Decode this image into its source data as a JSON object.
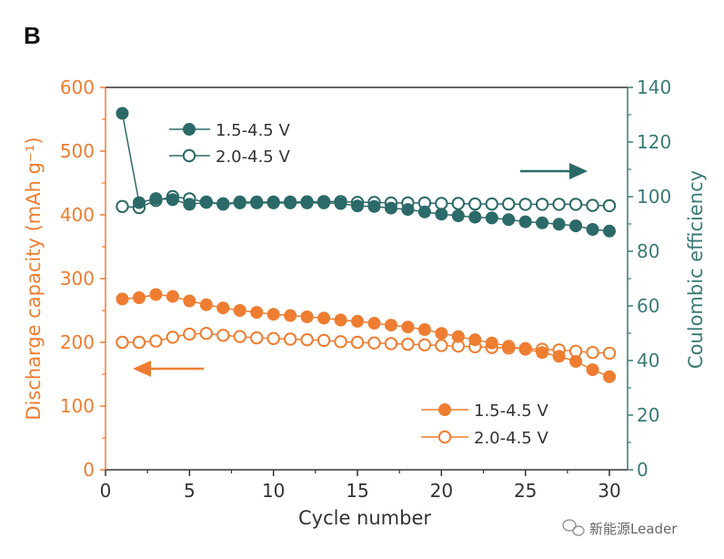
{
  "panel_label": "B",
  "watermark": "新能源Leader",
  "colors": {
    "capacity": "#ee7d31",
    "efficiency": "#2b6a68",
    "axis": "#333333"
  },
  "chart_data": {
    "type": "scatter",
    "title": "",
    "xlabel": "Cycle number",
    "ylabel": "Discharge capacity (mAh g⁻¹)",
    "y2label": "Coulombic efficiency",
    "xlim": [
      0,
      30
    ],
    "ylim": [
      0,
      600
    ],
    "y2lim": [
      0,
      140
    ],
    "xticks": [
      "0",
      "5",
      "10",
      "15",
      "20",
      "25",
      "30"
    ],
    "yticks": [
      "0",
      "100",
      "200",
      "300",
      "400",
      "500",
      "600"
    ],
    "y2ticks": [
      "0",
      "20",
      "40",
      "60",
      "80",
      "100",
      "120",
      "140"
    ],
    "grid": false,
    "x": [
      1,
      2,
      3,
      4,
      5,
      6,
      7,
      8,
      9,
      10,
      11,
      12,
      13,
      14,
      15,
      16,
      17,
      18,
      19,
      20,
      21,
      22,
      23,
      24,
      25,
      26,
      27,
      28,
      29,
      30
    ],
    "series": [
      {
        "name": "1.5-4.5 V",
        "axis": "right",
        "quantity": "Coulombic efficiency",
        "marker": "filled",
        "color": "#2b6a68",
        "values": [
          130.5,
          97.8,
          99.3,
          98.9,
          97.2,
          97.9,
          97.2,
          97.7,
          97.7,
          97.7,
          97.7,
          97.7,
          97.7,
          97.5,
          96.6,
          96.4,
          95.8,
          95.3,
          94.4,
          93.6,
          93.0,
          92.5,
          92.2,
          91.6,
          90.8,
          90.4,
          89.9,
          89.3,
          88.0,
          87.4
        ]
      },
      {
        "name": "2.0-4.5 V",
        "axis": "right",
        "quantity": "Coulombic efficiency",
        "marker": "open",
        "color": "#2b6a68",
        "values": [
          96.4,
          96.0,
          98.6,
          100.0,
          99.2,
          98.0,
          97.4,
          98.0,
          98.0,
          98.0,
          98.0,
          98.1,
          98.2,
          98.2,
          97.9,
          97.9,
          97.7,
          97.7,
          97.7,
          97.5,
          97.5,
          97.3,
          97.3,
          97.3,
          97.2,
          97.2,
          97.2,
          97.2,
          96.8,
          96.7
        ]
      },
      {
        "name": "1.5-4.5 V",
        "axis": "left",
        "quantity": "Discharge capacity",
        "marker": "filled",
        "color": "#ee7d31",
        "values": [
          268,
          270,
          275,
          272,
          265,
          259,
          254,
          250,
          247,
          244,
          242,
          240,
          238,
          235,
          233,
          230,
          227,
          224,
          220,
          214,
          209,
          204,
          199,
          194,
          189,
          184,
          178,
          170,
          157,
          146
        ]
      },
      {
        "name": "2.0-4.5 V",
        "axis": "left",
        "quantity": "Discharge capacity",
        "marker": "open",
        "color": "#ee7d31",
        "values": [
          200,
          200,
          202,
          208,
          213,
          214,
          211,
          209,
          207,
          206,
          205,
          204,
          203,
          201,
          200,
          199,
          198,
          197,
          196,
          195,
          194,
          193,
          192,
          191,
          190,
          189,
          188,
          186,
          184,
          183
        ]
      }
    ],
    "legends": [
      {
        "placement": "top-left",
        "axis": "right",
        "entries": [
          "1.5-4.5 V",
          "2.0-4.5 V"
        ]
      },
      {
        "placement": "bottom-right",
        "axis": "left",
        "entries": [
          "1.5-4.5 V",
          "2.0-4.5 V"
        ]
      }
    ],
    "annotations": [
      {
        "type": "arrow",
        "direction": "right",
        "meaning": "efficiency series read on right axis",
        "color": "#2b6a68"
      },
      {
        "type": "arrow",
        "direction": "left",
        "meaning": "capacity series read on left axis",
        "color": "#ee7d31"
      }
    ]
  }
}
